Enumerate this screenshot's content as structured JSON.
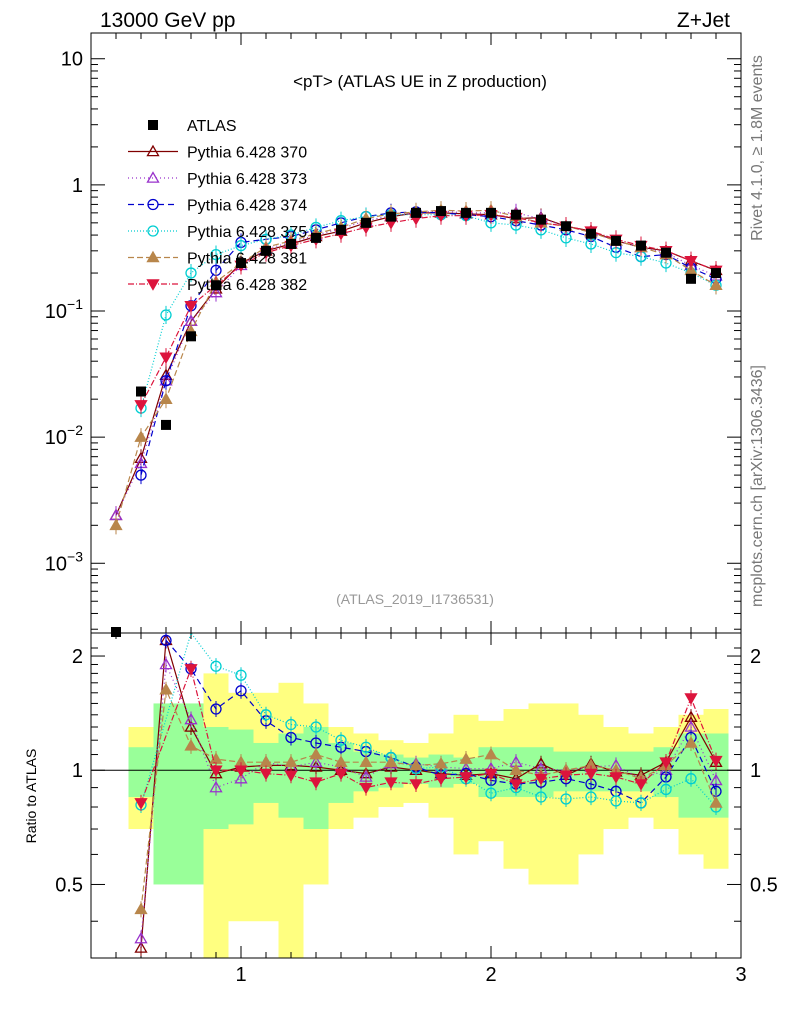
{
  "header": {
    "left": "13000 GeV pp",
    "right": "Z+Jet"
  },
  "side": {
    "rivet": "Rivet 4.1.0, ≥ 1.8M events",
    "mcplots": "mcplots.cern.ch [arXiv:1306.3436]"
  },
  "chart_data": {
    "type": "line",
    "title": "<pT> (ATLAS UE in Z production)",
    "watermark": "(ATLAS_2019_I1736531)",
    "xlabel": "",
    "ylabel_ratio": "Ratio to ATLAS",
    "xlim": [
      0.4,
      3.0
    ],
    "ylim_top": [
      0.00028,
      16
    ],
    "ylim_ratio": [
      0.32,
      2.3
    ],
    "x_ticks": [
      "1",
      "2",
      "3"
    ],
    "y_ticks_top": [
      "10^-3",
      "10^-2",
      "10^-1",
      "1",
      "10"
    ],
    "y_ticks_ratio": [
      "0.5",
      "1",
      "2"
    ],
    "x": [
      0.5,
      0.6,
      0.7,
      0.8,
      0.9,
      1.0,
      1.1,
      1.2,
      1.3,
      1.4,
      1.5,
      1.6,
      1.7,
      1.8,
      1.9,
      2.0,
      2.1,
      2.2,
      2.3,
      2.4,
      2.5,
      2.6,
      2.7,
      2.8,
      2.9
    ],
    "data": {
      "name": "ATLAS",
      "values": [
        0.00027,
        0.023,
        0.0125,
        0.063,
        0.16,
        0.24,
        0.3,
        0.34,
        0.38,
        0.44,
        0.5,
        0.56,
        0.6,
        0.62,
        0.6,
        0.6,
        0.58,
        0.53,
        0.47,
        0.41,
        0.36,
        0.33,
        0.29,
        0.18,
        0.2
      ]
    },
    "series": [
      {
        "name": "Pythia 6.428 370",
        "color": "#800000",
        "marker": "tri-up-open",
        "dash": "",
        "values": [
          0.0024,
          0.0068,
          0.031,
          0.083,
          0.15,
          0.24,
          0.3,
          0.34,
          0.39,
          0.43,
          0.5,
          0.56,
          0.6,
          0.6,
          0.59,
          0.58,
          0.54,
          0.55,
          0.47,
          0.43,
          0.36,
          0.32,
          0.3,
          0.25,
          0.21
        ],
        "ratio": [
          null,
          0.34,
          2.2,
          1.3,
          0.98,
          1.02,
          1.03,
          1.03,
          1.02,
          1.0,
          0.98,
          1.02,
          1.0,
          0.98,
          0.97,
          0.98,
          0.95,
          1.04,
          0.97,
          1.04,
          0.99,
          0.97,
          1.05,
          1.38,
          1.05
        ]
      },
      {
        "name": "Pythia 6.428 373",
        "color": "#9932cc",
        "marker": "tri-up-open",
        "dash": "1,3",
        "values": [
          0.0024,
          0.0062,
          0.028,
          0.083,
          0.14,
          0.23,
          0.31,
          0.35,
          0.4,
          0.45,
          0.52,
          0.57,
          0.6,
          0.62,
          0.6,
          0.6,
          0.6,
          0.54,
          0.47,
          0.42,
          0.36,
          0.32,
          0.29,
          0.23,
          0.19
        ],
        "ratio": [
          null,
          0.36,
          1.9,
          1.36,
          0.9,
          0.95,
          1.05,
          1.02,
          1.05,
          1.02,
          0.96,
          1.04,
          1.04,
          1.02,
          1.01,
          1.01,
          1.05,
          1.01,
          1.0,
          1.02,
          1.03,
          0.95,
          1.0,
          1.3,
          0.94
        ]
      },
      {
        "name": "Pythia 6.428 374",
        "color": "#0000cd",
        "marker": "circle-open",
        "dash": "6,4",
        "values": [
          null,
          0.005,
          0.028,
          0.11,
          0.21,
          0.35,
          0.37,
          0.39,
          0.44,
          0.5,
          0.56,
          0.6,
          0.61,
          0.6,
          0.58,
          0.56,
          0.52,
          0.48,
          0.44,
          0.39,
          0.32,
          0.27,
          0.28,
          0.22,
          0.18
        ],
        "ratio": [
          null,
          null,
          2.2,
          1.85,
          1.45,
          1.62,
          1.35,
          1.22,
          1.18,
          1.15,
          1.12,
          1.08,
          1.02,
          0.97,
          0.98,
          0.94,
          0.92,
          0.93,
          0.95,
          0.92,
          0.88,
          0.82,
          0.96,
          1.22,
          0.88
        ]
      },
      {
        "name": "Pythia 6.428 375",
        "color": "#00ced1",
        "marker": "circle-open",
        "dash": "1,2",
        "values": [
          null,
          0.017,
          0.093,
          0.2,
          0.28,
          0.33,
          0.37,
          0.4,
          0.46,
          0.52,
          0.56,
          0.58,
          0.58,
          0.58,
          0.57,
          0.5,
          0.48,
          0.44,
          0.38,
          0.34,
          0.29,
          0.27,
          0.24,
          0.2,
          0.16
        ],
        "ratio": [
          null,
          0.81,
          null,
          2.4,
          1.88,
          1.78,
          1.4,
          1.32,
          1.3,
          1.2,
          1.15,
          1.08,
          1.01,
          1.02,
          0.95,
          0.87,
          0.9,
          0.85,
          0.84,
          0.85,
          0.83,
          0.82,
          0.89,
          0.95,
          0.8
        ]
      },
      {
        "name": "Pythia 6.428 381",
        "color": "#b8864b",
        "marker": "tri-up-full",
        "dash": "6,3",
        "values": [
          0.002,
          0.01,
          0.02,
          0.069,
          0.17,
          0.24,
          0.32,
          0.36,
          0.41,
          0.46,
          0.54,
          0.59,
          0.61,
          0.63,
          0.62,
          0.63,
          0.56,
          0.5,
          0.47,
          0.42,
          0.36,
          0.32,
          0.28,
          0.21,
          0.16
        ],
        "ratio": [
          null,
          0.43,
          1.63,
          1.16,
          1.07,
          1.05,
          1.05,
          1.05,
          1.1,
          1.05,
          1.05,
          1.05,
          1.03,
          1.04,
          1.07,
          1.1,
          1.0,
          0.97,
          1.0,
          1.03,
          1.0,
          0.95,
          1.03,
          1.18,
          0.82
        ]
      },
      {
        "name": "Pythia 6.428 382",
        "color": "#dc143c",
        "marker": "tri-down-full",
        "dash": "6,2,1,2",
        "values": [
          null,
          0.018,
          0.043,
          0.11,
          0.16,
          0.23,
          0.29,
          0.33,
          0.37,
          0.41,
          0.46,
          0.5,
          0.54,
          0.57,
          0.57,
          0.58,
          0.55,
          0.5,
          0.47,
          0.43,
          0.37,
          0.33,
          0.3,
          0.25,
          0.21
        ],
        "ratio": [
          null,
          0.82,
          null,
          1.85,
          1.0,
          1.0,
          0.98,
          0.97,
          0.93,
          0.98,
          0.9,
          0.93,
          0.92,
          0.95,
          0.96,
          0.98,
          0.92,
          0.95,
          0.97,
          0.98,
          0.96,
          0.92,
          1.05,
          1.55,
          1.06
        ]
      }
    ],
    "bands": {
      "inner": [
        null,
        0.15,
        0.5,
        0.5,
        0.3,
        0.28,
        0.18,
        0.25,
        0.3,
        0.18,
        0.12,
        0.1,
        0.08,
        0.1,
        0.08,
        0.15,
        0.15,
        0.15,
        0.12,
        0.12,
        0.12,
        0.12,
        0.15,
        0.25,
        0.25
      ],
      "outer": [
        null,
        0.3,
        null,
        null,
        0.8,
        0.6,
        0.6,
        0.7,
        0.5,
        0.3,
        0.25,
        0.2,
        0.18,
        0.25,
        0.4,
        0.35,
        0.45,
        0.5,
        0.5,
        0.4,
        0.3,
        0.25,
        0.3,
        0.4,
        0.45
      ]
    }
  }
}
